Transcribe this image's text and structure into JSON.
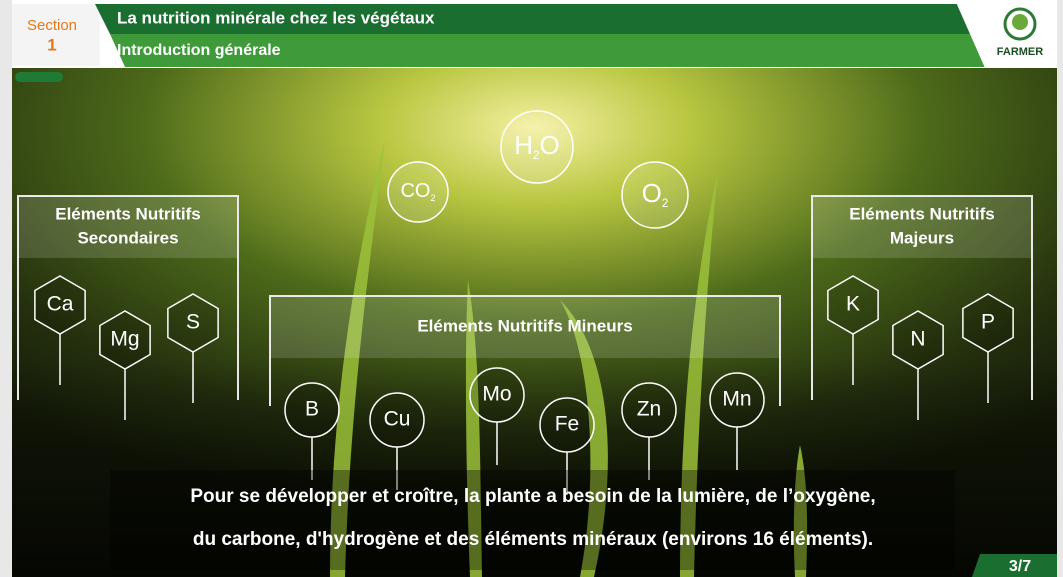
{
  "header": {
    "section_label": "Section",
    "section_number": "1",
    "title": "La nutrition minérale chez les végétaux",
    "subtitle": "Introduction générale",
    "logo": "FARMER"
  },
  "molecules": [
    {
      "parts": [
        "H",
        "2",
        "O"
      ]
    },
    {
      "parts": [
        "CO",
        "2"
      ]
    },
    {
      "parts": [
        "O",
        "2"
      ]
    }
  ],
  "panels": [
    {
      "title_lines": [
        "Eléments Nutritifs",
        "Secondaires"
      ],
      "elements": [
        "Ca",
        "Mg",
        "S"
      ]
    },
    {
      "title_lines": [
        "Eléments Nutritifs",
        "Majeurs"
      ],
      "elements": [
        "K",
        "N",
        "P"
      ]
    },
    {
      "title_lines": [
        "Eléments Nutritifs Mineurs"
      ],
      "elements": [
        "B",
        "Cu",
        "Mo",
        "Fe",
        "Zn",
        "Mn"
      ]
    }
  ],
  "caption": [
    "Pour se développer et croître, la plante  a besoin  de la lumière, de l’oxygène,",
    "du carbone, d'hydrogène et des éléments minéraux (environs 16 éléments)."
  ],
  "page": "3/7"
}
